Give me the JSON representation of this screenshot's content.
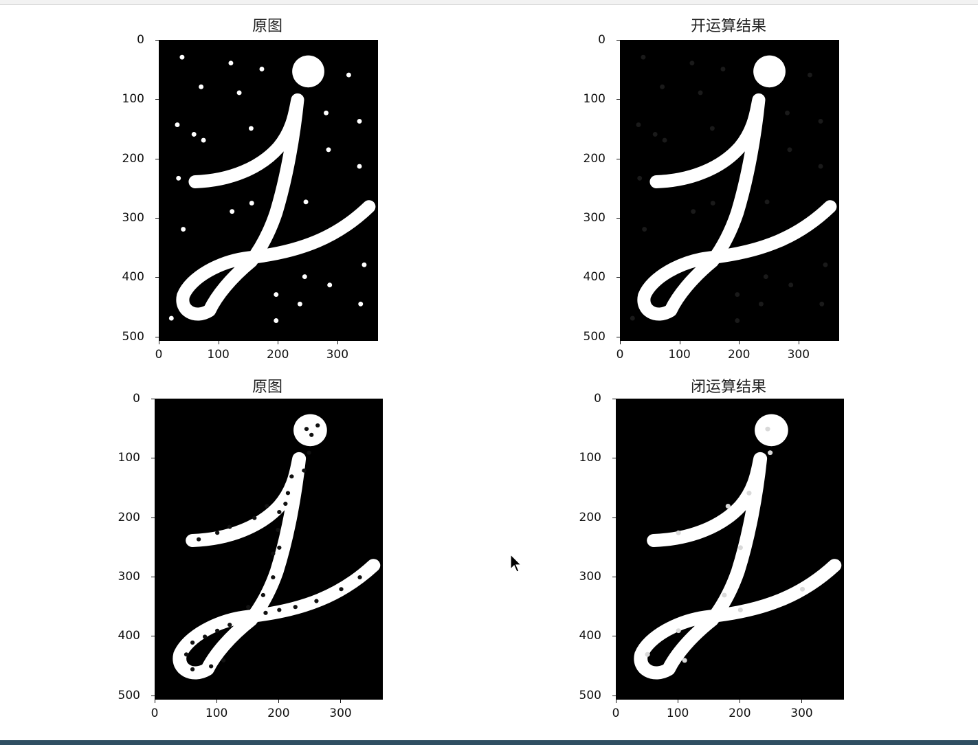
{
  "panels": [
    {
      "id": "p1",
      "title": "原图",
      "variant": "original_noise"
    },
    {
      "id": "p2",
      "title": "开运算结果",
      "variant": "opened"
    },
    {
      "id": "p3",
      "title": "原图",
      "variant": "original_holes"
    },
    {
      "id": "p4",
      "title": "闭运算结果",
      "variant": "closed"
    }
  ],
  "axes": {
    "y_ticks": [
      "0",
      "100",
      "200",
      "300",
      "400",
      "500"
    ],
    "x_ticks": [
      "0",
      "100",
      "200",
      "300"
    ],
    "y_values": [
      0,
      100,
      200,
      300,
      400,
      500
    ],
    "x_values": [
      0,
      100,
      200,
      300
    ]
  },
  "colors": {
    "background": "#ffffff",
    "image_bg": "#000000",
    "stroke": "#ffffff",
    "bottom_bar": "#2f4f62"
  },
  "cursor": {
    "icon": "mouse-pointer-icon"
  }
}
